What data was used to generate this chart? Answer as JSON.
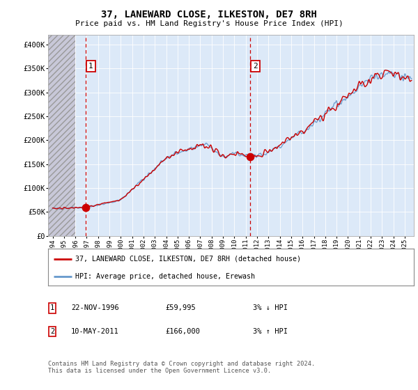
{
  "title": "37, LANEWARD CLOSE, ILKESTON, DE7 8RH",
  "subtitle": "Price paid vs. HM Land Registry's House Price Index (HPI)",
  "legend_line1": "37, LANEWARD CLOSE, ILKESTON, DE7 8RH (detached house)",
  "legend_line2": "HPI: Average price, detached house, Erewash",
  "annotation1_label": "1",
  "annotation1_date": "22-NOV-1996",
  "annotation1_price": "£59,995",
  "annotation1_hpi": "3% ↓ HPI",
  "annotation2_label": "2",
  "annotation2_date": "10-MAY-2011",
  "annotation2_price": "£166,000",
  "annotation2_hpi": "3% ↑ HPI",
  "footer": "Contains HM Land Registry data © Crown copyright and database right 2024.\nThis data is licensed under the Open Government Licence v3.0.",
  "ylim": [
    0,
    420000
  ],
  "yticks": [
    0,
    50000,
    100000,
    150000,
    200000,
    250000,
    300000,
    350000,
    400000
  ],
  "ytick_labels": [
    "£0",
    "£50K",
    "£100K",
    "£150K",
    "£200K",
    "£250K",
    "£300K",
    "£350K",
    "£400K"
  ],
  "background_color": "#ffffff",
  "plot_bg_color": "#dce9f8",
  "red_line_color": "#cc0000",
  "blue_line_color": "#6699cc",
  "annotation_box_color": "#cc0000",
  "vline_color": "#cc0000",
  "sale1_x": 1996.9,
  "sale1_y": 59995,
  "sale2_x": 2011.37,
  "sale2_y": 166000,
  "hatch_end_x": 1996.0,
  "xlim_left": 1993.6,
  "xlim_right": 2025.8
}
